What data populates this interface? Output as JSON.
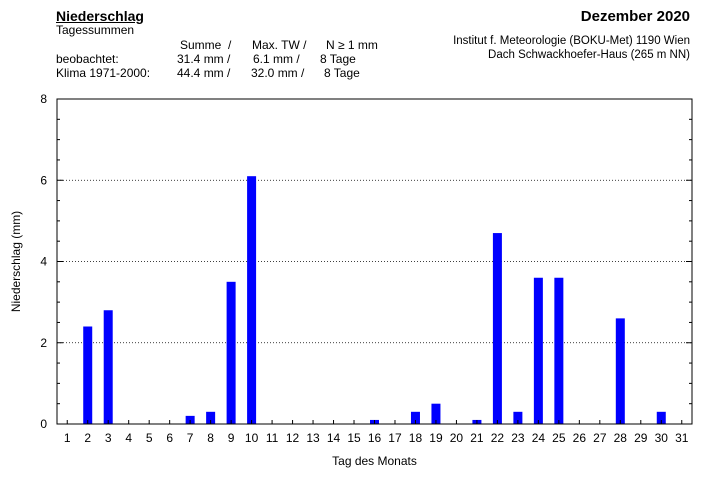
{
  "header": {
    "title": "Niederschlag",
    "subtitle": "Tagessummen",
    "month": "Dezember 2020",
    "institute_line1": "Institut f. Meteorologie (BOKU-Met) 1190 Wien",
    "institute_line2": "Dach Schwackhoefer-Haus (265 m NN)"
  },
  "stats": {
    "col_sum": "Summe  /",
    "col_max": "Max. TW /",
    "col_days": "N ≥ 1 mm",
    "observed_label": "beobachtet:",
    "observed_sum": "31.4 mm /",
    "observed_max": "6.1 mm /",
    "observed_days": "8 Tage",
    "climate_label": "Klima 1971-2000:",
    "climate_sum": "44.4 mm /",
    "climate_max": "32.0 mm /",
    "climate_days": "8 Tage"
  },
  "chart_data": {
    "type": "bar",
    "xlabel": "Tag des Monats",
    "ylabel": "Niederschlag (mm)",
    "ylim": [
      0,
      8
    ],
    "yticks": [
      0,
      2,
      4,
      6,
      8
    ],
    "grid": "horizontal dotted at 2, 4, 6",
    "bar_color": "#0000ff",
    "categories": [
      "1",
      "2",
      "3",
      "4",
      "5",
      "6",
      "7",
      "8",
      "9",
      "10",
      "11",
      "12",
      "13",
      "14",
      "15",
      "16",
      "17",
      "18",
      "19",
      "20",
      "21",
      "22",
      "23",
      "24",
      "25",
      "26",
      "27",
      "28",
      "29",
      "30",
      "31"
    ],
    "values": [
      0,
      2.4,
      2.8,
      0,
      0,
      0,
      0.2,
      0.3,
      3.5,
      6.1,
      0,
      0,
      0,
      0,
      0,
      0.1,
      0,
      0.3,
      0.5,
      0,
      0.1,
      4.7,
      0.3,
      3.6,
      3.6,
      0,
      0,
      2.6,
      0,
      0.3,
      0
    ]
  }
}
